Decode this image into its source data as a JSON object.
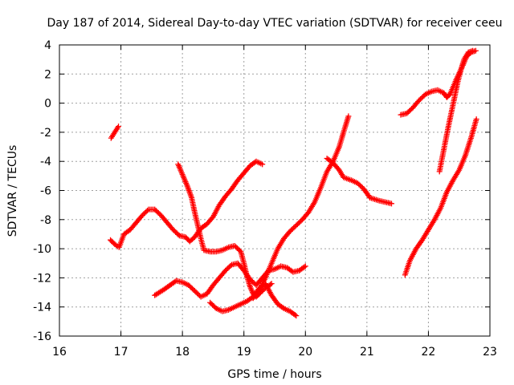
{
  "chart_data": {
    "type": "scatter",
    "title": "Day 187 of 2014, Sidereal Day-to-day VTEC variation (SDTVAR) for receiver ceeu",
    "xlabel": "GPS time / hours",
    "ylabel": "SDTVAR / TECUs",
    "xlim": [
      16,
      23
    ],
    "ylim": [
      -16,
      4
    ],
    "xticks": [
      16,
      17,
      18,
      19,
      20,
      21,
      22,
      23
    ],
    "yticks": [
      -16,
      -14,
      -12,
      -10,
      -8,
      -6,
      -4,
      -2,
      0,
      2,
      4
    ],
    "grid": true,
    "marker": "+",
    "color": "#ff0000",
    "series": [
      {
        "name": "s1",
        "points": [
          [
            16.84,
            -2.4
          ],
          [
            16.9,
            -2.0
          ],
          [
            16.96,
            -1.6
          ]
        ]
      },
      {
        "name": "s2",
        "points": [
          [
            16.83,
            -9.4
          ],
          [
            16.9,
            -9.7
          ],
          [
            16.97,
            -9.9
          ],
          [
            17.05,
            -9.0
          ],
          [
            17.15,
            -8.7
          ],
          [
            17.25,
            -8.2
          ],
          [
            17.35,
            -7.7
          ],
          [
            17.45,
            -7.3
          ],
          [
            17.55,
            -7.3
          ],
          [
            17.65,
            -7.7
          ],
          [
            17.75,
            -8.2
          ],
          [
            17.85,
            -8.7
          ],
          [
            17.95,
            -9.1
          ],
          [
            18.05,
            -9.2
          ],
          [
            18.12,
            -9.5
          ],
          [
            18.2,
            -9.2
          ],
          [
            18.3,
            -8.6
          ],
          [
            18.4,
            -8.3
          ],
          [
            18.5,
            -7.8
          ],
          [
            18.6,
            -7.0
          ],
          [
            18.7,
            -6.4
          ],
          [
            18.8,
            -5.9
          ],
          [
            18.9,
            -5.3
          ],
          [
            19.0,
            -4.8
          ],
          [
            19.1,
            -4.3
          ],
          [
            19.2,
            -4.0
          ],
          [
            19.3,
            -4.2
          ]
        ]
      },
      {
        "name": "s3",
        "points": [
          [
            17.93,
            -4.2
          ],
          [
            18.0,
            -4.9
          ],
          [
            18.08,
            -5.7
          ],
          [
            18.15,
            -6.5
          ],
          [
            18.2,
            -7.5
          ],
          [
            18.25,
            -8.4
          ],
          [
            18.3,
            -9.3
          ],
          [
            18.35,
            -10.1
          ],
          [
            18.45,
            -10.2
          ],
          [
            18.55,
            -10.2
          ],
          [
            18.65,
            -10.1
          ],
          [
            18.75,
            -9.9
          ],
          [
            18.85,
            -9.8
          ],
          [
            18.95,
            -10.2
          ],
          [
            19.0,
            -11.0
          ],
          [
            19.05,
            -11.9
          ],
          [
            19.1,
            -12.6
          ],
          [
            19.15,
            -13.1
          ],
          [
            19.2,
            -13.3
          ],
          [
            19.25,
            -13.1
          ],
          [
            19.35,
            -12.7
          ],
          [
            19.45,
            -12.4
          ]
        ]
      },
      {
        "name": "s4",
        "points": [
          [
            17.55,
            -13.2
          ],
          [
            17.7,
            -12.8
          ],
          [
            17.8,
            -12.5
          ],
          [
            17.9,
            -12.2
          ],
          [
            18.0,
            -12.3
          ],
          [
            18.1,
            -12.5
          ],
          [
            18.2,
            -12.9
          ],
          [
            18.3,
            -13.3
          ],
          [
            18.4,
            -13.1
          ],
          [
            18.5,
            -12.5
          ],
          [
            18.6,
            -12.0
          ],
          [
            18.7,
            -11.5
          ],
          [
            18.8,
            -11.1
          ],
          [
            18.9,
            -11.0
          ],
          [
            19.0,
            -11.5
          ],
          [
            19.1,
            -12.1
          ],
          [
            19.2,
            -12.5
          ],
          [
            19.3,
            -12.0
          ],
          [
            19.4,
            -11.5
          ],
          [
            19.5,
            -11.4
          ],
          [
            19.6,
            -11.2
          ],
          [
            19.7,
            -11.3
          ],
          [
            19.8,
            -11.6
          ],
          [
            19.9,
            -11.5
          ],
          [
            20.0,
            -11.2
          ]
        ]
      },
      {
        "name": "s5",
        "points": [
          [
            18.45,
            -13.7
          ],
          [
            18.55,
            -14.1
          ],
          [
            18.65,
            -14.3
          ],
          [
            18.75,
            -14.2
          ],
          [
            18.85,
            -14.0
          ],
          [
            18.95,
            -13.8
          ],
          [
            19.05,
            -13.6
          ],
          [
            19.15,
            -13.3
          ],
          [
            19.25,
            -12.7
          ],
          [
            19.35,
            -12.4
          ],
          [
            19.45,
            -13.2
          ],
          [
            19.55,
            -13.8
          ],
          [
            19.65,
            -14.1
          ],
          [
            19.75,
            -14.3
          ],
          [
            19.85,
            -14.6
          ]
        ]
      },
      {
        "name": "s6",
        "points": [
          [
            19.15,
            -13.4
          ],
          [
            19.25,
            -12.9
          ],
          [
            19.35,
            -12.0
          ],
          [
            19.45,
            -11.0
          ],
          [
            19.55,
            -10.0
          ],
          [
            19.65,
            -9.3
          ],
          [
            19.75,
            -8.8
          ],
          [
            19.85,
            -8.4
          ],
          [
            19.95,
            -8.0
          ],
          [
            20.05,
            -7.5
          ],
          [
            20.15,
            -6.8
          ],
          [
            20.25,
            -5.8
          ],
          [
            20.35,
            -4.7
          ],
          [
            20.45,
            -4.0
          ],
          [
            20.55,
            -3.0
          ],
          [
            20.62,
            -2.0
          ],
          [
            20.7,
            -0.9
          ]
        ]
      },
      {
        "name": "s7",
        "points": [
          [
            20.35,
            -3.8
          ],
          [
            20.45,
            -4.1
          ],
          [
            20.55,
            -4.6
          ],
          [
            20.62,
            -5.1
          ],
          [
            20.75,
            -5.3
          ],
          [
            20.85,
            -5.5
          ],
          [
            20.95,
            -5.9
          ],
          [
            21.05,
            -6.5
          ],
          [
            21.2,
            -6.7
          ],
          [
            21.3,
            -6.8
          ],
          [
            21.4,
            -6.9
          ]
        ]
      },
      {
        "name": "s8",
        "points": [
          [
            21.55,
            -0.8
          ],
          [
            21.65,
            -0.7
          ],
          [
            21.75,
            -0.3
          ],
          [
            21.85,
            0.2
          ],
          [
            21.95,
            0.6
          ],
          [
            22.05,
            0.8
          ],
          [
            22.15,
            0.9
          ],
          [
            22.25,
            0.7
          ],
          [
            22.3,
            0.4
          ],
          [
            22.35,
            0.6
          ],
          [
            22.45,
            1.6
          ],
          [
            22.55,
            2.5
          ],
          [
            22.62,
            3.2
          ],
          [
            22.7,
            3.5
          ],
          [
            22.77,
            3.6
          ]
        ]
      },
      {
        "name": "s9",
        "points": [
          [
            22.18,
            -4.7
          ],
          [
            22.25,
            -3.2
          ],
          [
            22.32,
            -1.7
          ],
          [
            22.38,
            -0.5
          ],
          [
            22.43,
            0.5
          ],
          [
            22.48,
            1.5
          ],
          [
            22.53,
            2.3
          ],
          [
            22.58,
            3.0
          ],
          [
            22.65,
            3.5
          ],
          [
            22.72,
            3.6
          ]
        ]
      },
      {
        "name": "s10",
        "points": [
          [
            21.62,
            -11.8
          ],
          [
            21.7,
            -10.8
          ],
          [
            21.8,
            -10.0
          ],
          [
            21.9,
            -9.4
          ],
          [
            22.0,
            -8.7
          ],
          [
            22.1,
            -8.0
          ],
          [
            22.2,
            -7.2
          ],
          [
            22.3,
            -6.1
          ],
          [
            22.4,
            -5.3
          ],
          [
            22.5,
            -4.6
          ],
          [
            22.6,
            -3.6
          ],
          [
            22.7,
            -2.3
          ],
          [
            22.78,
            -1.1
          ]
        ]
      }
    ]
  }
}
